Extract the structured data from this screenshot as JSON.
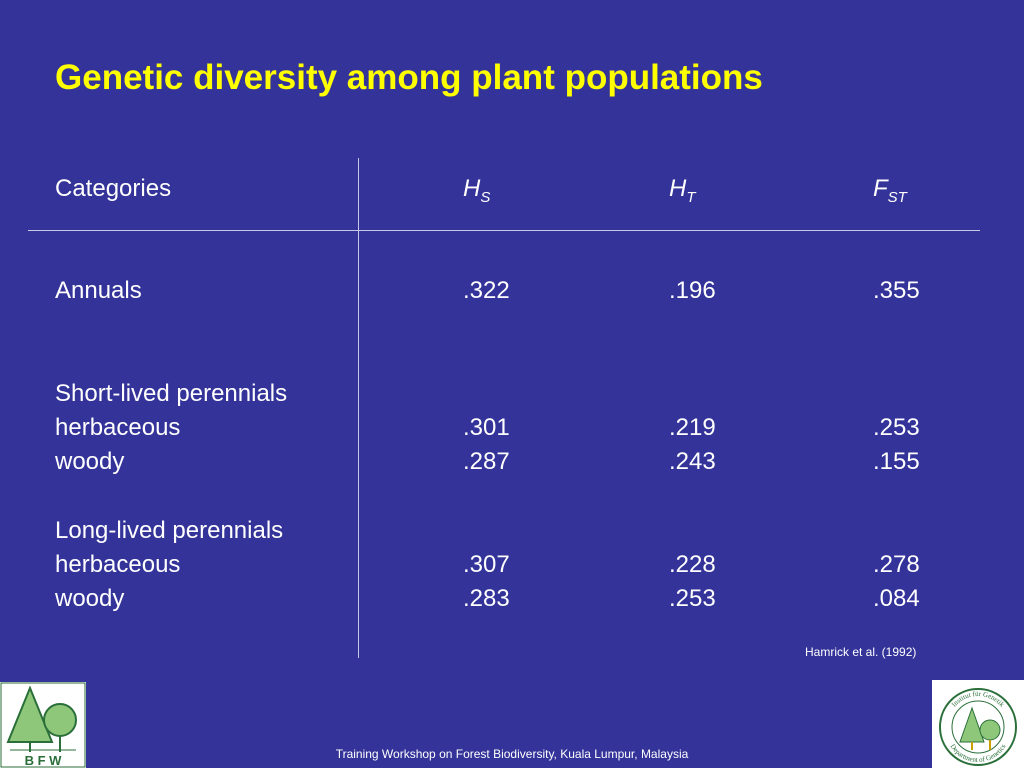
{
  "slide": {
    "title": "Genetic diversity among plant populations",
    "citation": "Hamrick et al. (1992)",
    "footer": "Training Workshop on Forest Biodiversity, Kuala Lumpur, Malaysia"
  },
  "table": {
    "headers": {
      "categories": "Categories",
      "hs": {
        "main": "H",
        "sub": "S"
      },
      "ht": {
        "main": "H",
        "sub": "T"
      },
      "fst": {
        "main": "F",
        "sub": "ST"
      }
    },
    "rows": [
      {
        "label": "Annuals",
        "hs": ".322",
        "ht": ".196",
        "fst": ".355"
      },
      {
        "label": "Short-lived perennials",
        "hs": "",
        "ht": "",
        "fst": ""
      },
      {
        "label": "herbaceous",
        "hs": ".301",
        "ht": ".219",
        "fst": ".253"
      },
      {
        "label": "woody",
        "hs": ".287",
        "ht": ".243",
        "fst": ".155"
      },
      {
        "label": "Long-lived perennials",
        "hs": "",
        "ht": "",
        "fst": ""
      },
      {
        "label": "herbaceous",
        "hs": ".307",
        "ht": ".228",
        "fst": ".278"
      },
      {
        "label": "woody",
        "hs": ".283",
        "ht": ".253",
        "fst": ".084"
      }
    ]
  },
  "logos": {
    "left": {
      "text": "B F W"
    },
    "right": {
      "top_text": "Institut für Genetik",
      "bottom_text": "Department of Genetics"
    }
  },
  "colors": {
    "background": "#333399",
    "title": "#ffff00",
    "text": "#ffffff",
    "logo_green": "#8fc77a"
  }
}
